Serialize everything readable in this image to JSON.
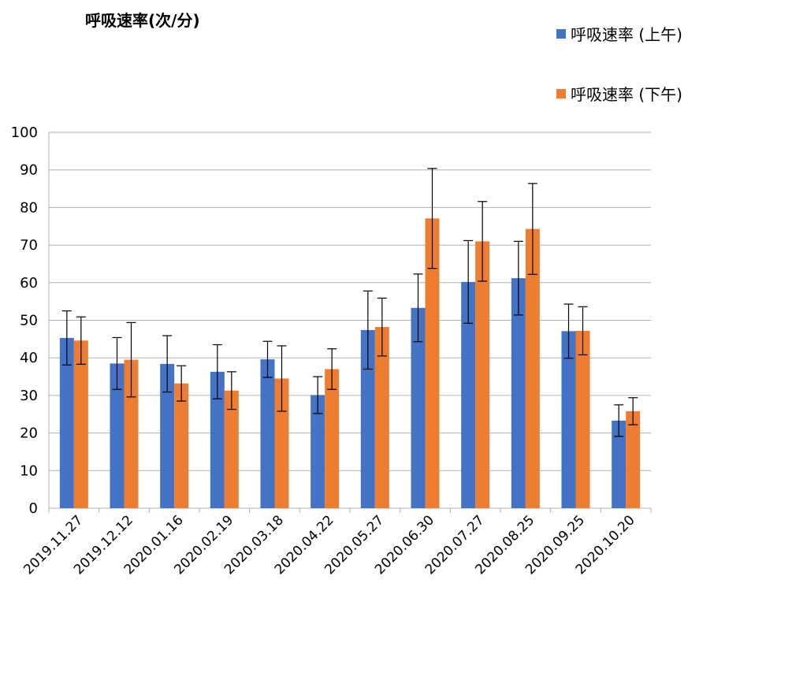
{
  "chart_data": {
    "type": "bar",
    "title": "呼吸速率(次/分)",
    "categories": [
      "2019.11.27",
      "2019.12.12",
      "2020.01.16",
      "2020.02.19",
      "2020.03.18",
      "2020.04.22",
      "2020.05.27",
      "2020.06.30",
      "2020.07.27",
      "2020.08.25",
      "2020.09.25",
      "2020.10.20"
    ],
    "ylim": [
      0,
      100
    ],
    "yticks": [
      0,
      10,
      20,
      30,
      40,
      50,
      60,
      70,
      80,
      90,
      100
    ],
    "grid": true,
    "legend_position": "top-right",
    "series": [
      {
        "name": "呼吸速率 (上午)",
        "color": "#4472C4",
        "values": [
          45.3,
          38.5,
          38.4,
          36.3,
          39.6,
          30.1,
          47.4,
          53.3,
          60.2,
          61.2,
          47.1,
          23.3
        ],
        "error": [
          7.2,
          6.9,
          7.5,
          7.2,
          4.8,
          4.9,
          10.4,
          9.0,
          11.0,
          9.8,
          7.2,
          4.2
        ]
      },
      {
        "name": "呼吸速率 (下午)",
        "color": "#ED7D31",
        "values": [
          44.6,
          39.5,
          33.2,
          31.3,
          34.5,
          37.0,
          48.2,
          77.1,
          71.0,
          74.3,
          47.2,
          25.8
        ],
        "error": [
          6.3,
          9.9,
          4.7,
          5.0,
          8.7,
          5.4,
          7.7,
          13.3,
          10.6,
          12.1,
          6.4,
          3.6
        ]
      }
    ]
  }
}
